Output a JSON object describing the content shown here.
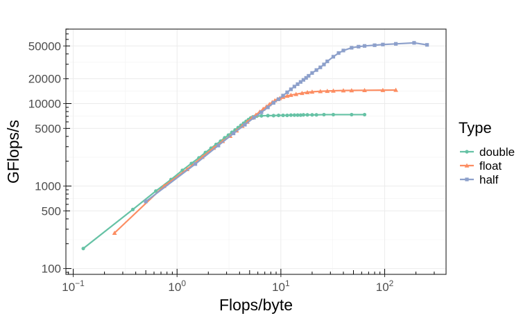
{
  "chart_data": {
    "type": "line",
    "xlabel": "Flops/byte",
    "ylabel": "GFlops/s",
    "x_scale": "log10",
    "y_scale": "log10",
    "xlim": [
      0.085,
      390
    ],
    "ylim": [
      85,
      80000
    ],
    "x_ticks": [
      {
        "value": 0.1,
        "base": "10",
        "exp": "−1"
      },
      {
        "value": 1,
        "base": "10",
        "exp": "0"
      },
      {
        "value": 10,
        "base": "10",
        "exp": "1"
      },
      {
        "value": 100,
        "base": "10",
        "exp": "2"
      }
    ],
    "y_ticks": [
      {
        "value": 100,
        "label": "100"
      },
      {
        "value": 500,
        "label": "500"
      },
      {
        "value": 1000,
        "label": "1000"
      },
      {
        "value": 5000,
        "label": "5000"
      },
      {
        "value": 10000,
        "label": "10000"
      },
      {
        "value": 20000,
        "label": "20000"
      },
      {
        "value": 50000,
        "label": "50000"
      }
    ],
    "grid": true,
    "legend": {
      "title": "Type",
      "position": "right"
    },
    "series": [
      {
        "name": "double",
        "color": "#66c2a5",
        "marker": "circle",
        "x": [
          0.125,
          0.375,
          0.625,
          0.875,
          1.125,
          1.375,
          1.625,
          1.875,
          2.125,
          2.375,
          2.625,
          2.875,
          3.125,
          3.375,
          3.625,
          3.875,
          4.125,
          4.375,
          4.625,
          4.875,
          5.125,
          5.375,
          5.625,
          5.875,
          6.5,
          7.5,
          8.5,
          9.5,
          10.5,
          11.5,
          12.5,
          13.5,
          14.5,
          15.5,
          16.5,
          18,
          20,
          22,
          26,
          32,
          48,
          64
        ],
        "y": [
          175,
          520,
          870,
          1200,
          1550,
          1880,
          2200,
          2550,
          2880,
          3200,
          3500,
          3850,
          4150,
          4480,
          4800,
          5120,
          5450,
          5780,
          6100,
          6400,
          6700,
          6900,
          7000,
          7050,
          7100,
          7150,
          7150,
          7200,
          7200,
          7200,
          7250,
          7250,
          7250,
          7250,
          7300,
          7300,
          7300,
          7300,
          7350,
          7350,
          7350,
          7350
        ]
      },
      {
        "name": "float",
        "color": "#fc8d62",
        "marker": "triangle",
        "x": [
          0.25,
          0.75,
          1.25,
          1.75,
          2.25,
          2.75,
          3.25,
          3.75,
          4.25,
          4.75,
          5.25,
          5.75,
          6.25,
          6.75,
          7.25,
          7.75,
          8.25,
          8.75,
          9.25,
          9.75,
          10.5,
          11.5,
          12.5,
          14,
          16,
          18,
          20,
          24,
          28,
          32,
          40,
          48,
          64,
          96,
          128
        ],
        "y": [
          270,
          1000,
          1600,
          2250,
          2900,
          3500,
          4050,
          4700,
          5350,
          6000,
          6700,
          7300,
          7950,
          8600,
          9200,
          9800,
          10400,
          10900,
          11300,
          11600,
          12000,
          12400,
          12700,
          13000,
          13400,
          13700,
          13900,
          14100,
          14200,
          14300,
          14400,
          14450,
          14500,
          14550,
          14600
        ]
      },
      {
        "name": "half",
        "color": "#8da0cb",
        "marker": "square",
        "x": [
          0.5,
          1.5,
          2.5,
          3.5,
          4.5,
          5.5,
          6.5,
          7.5,
          8.5,
          9.5,
          10.5,
          11.5,
          12.5,
          13.5,
          14.5,
          15.5,
          16.5,
          17.5,
          18.5,
          20,
          22,
          24,
          26,
          28,
          32,
          36,
          40,
          48,
          56,
          64,
          80,
          96,
          128,
          192,
          256
        ],
        "y": [
          650,
          1850,
          3100,
          4350,
          5550,
          6750,
          7850,
          9000,
          10200,
          11300,
          12500,
          13700,
          14900,
          16100,
          17200,
          18300,
          19400,
          20500,
          21700,
          23500,
          25500,
          27500,
          29800,
          32500,
          37000,
          41000,
          44000,
          47500,
          49000,
          50000,
          51000,
          52000,
          53000,
          54500,
          51500
        ]
      }
    ]
  }
}
